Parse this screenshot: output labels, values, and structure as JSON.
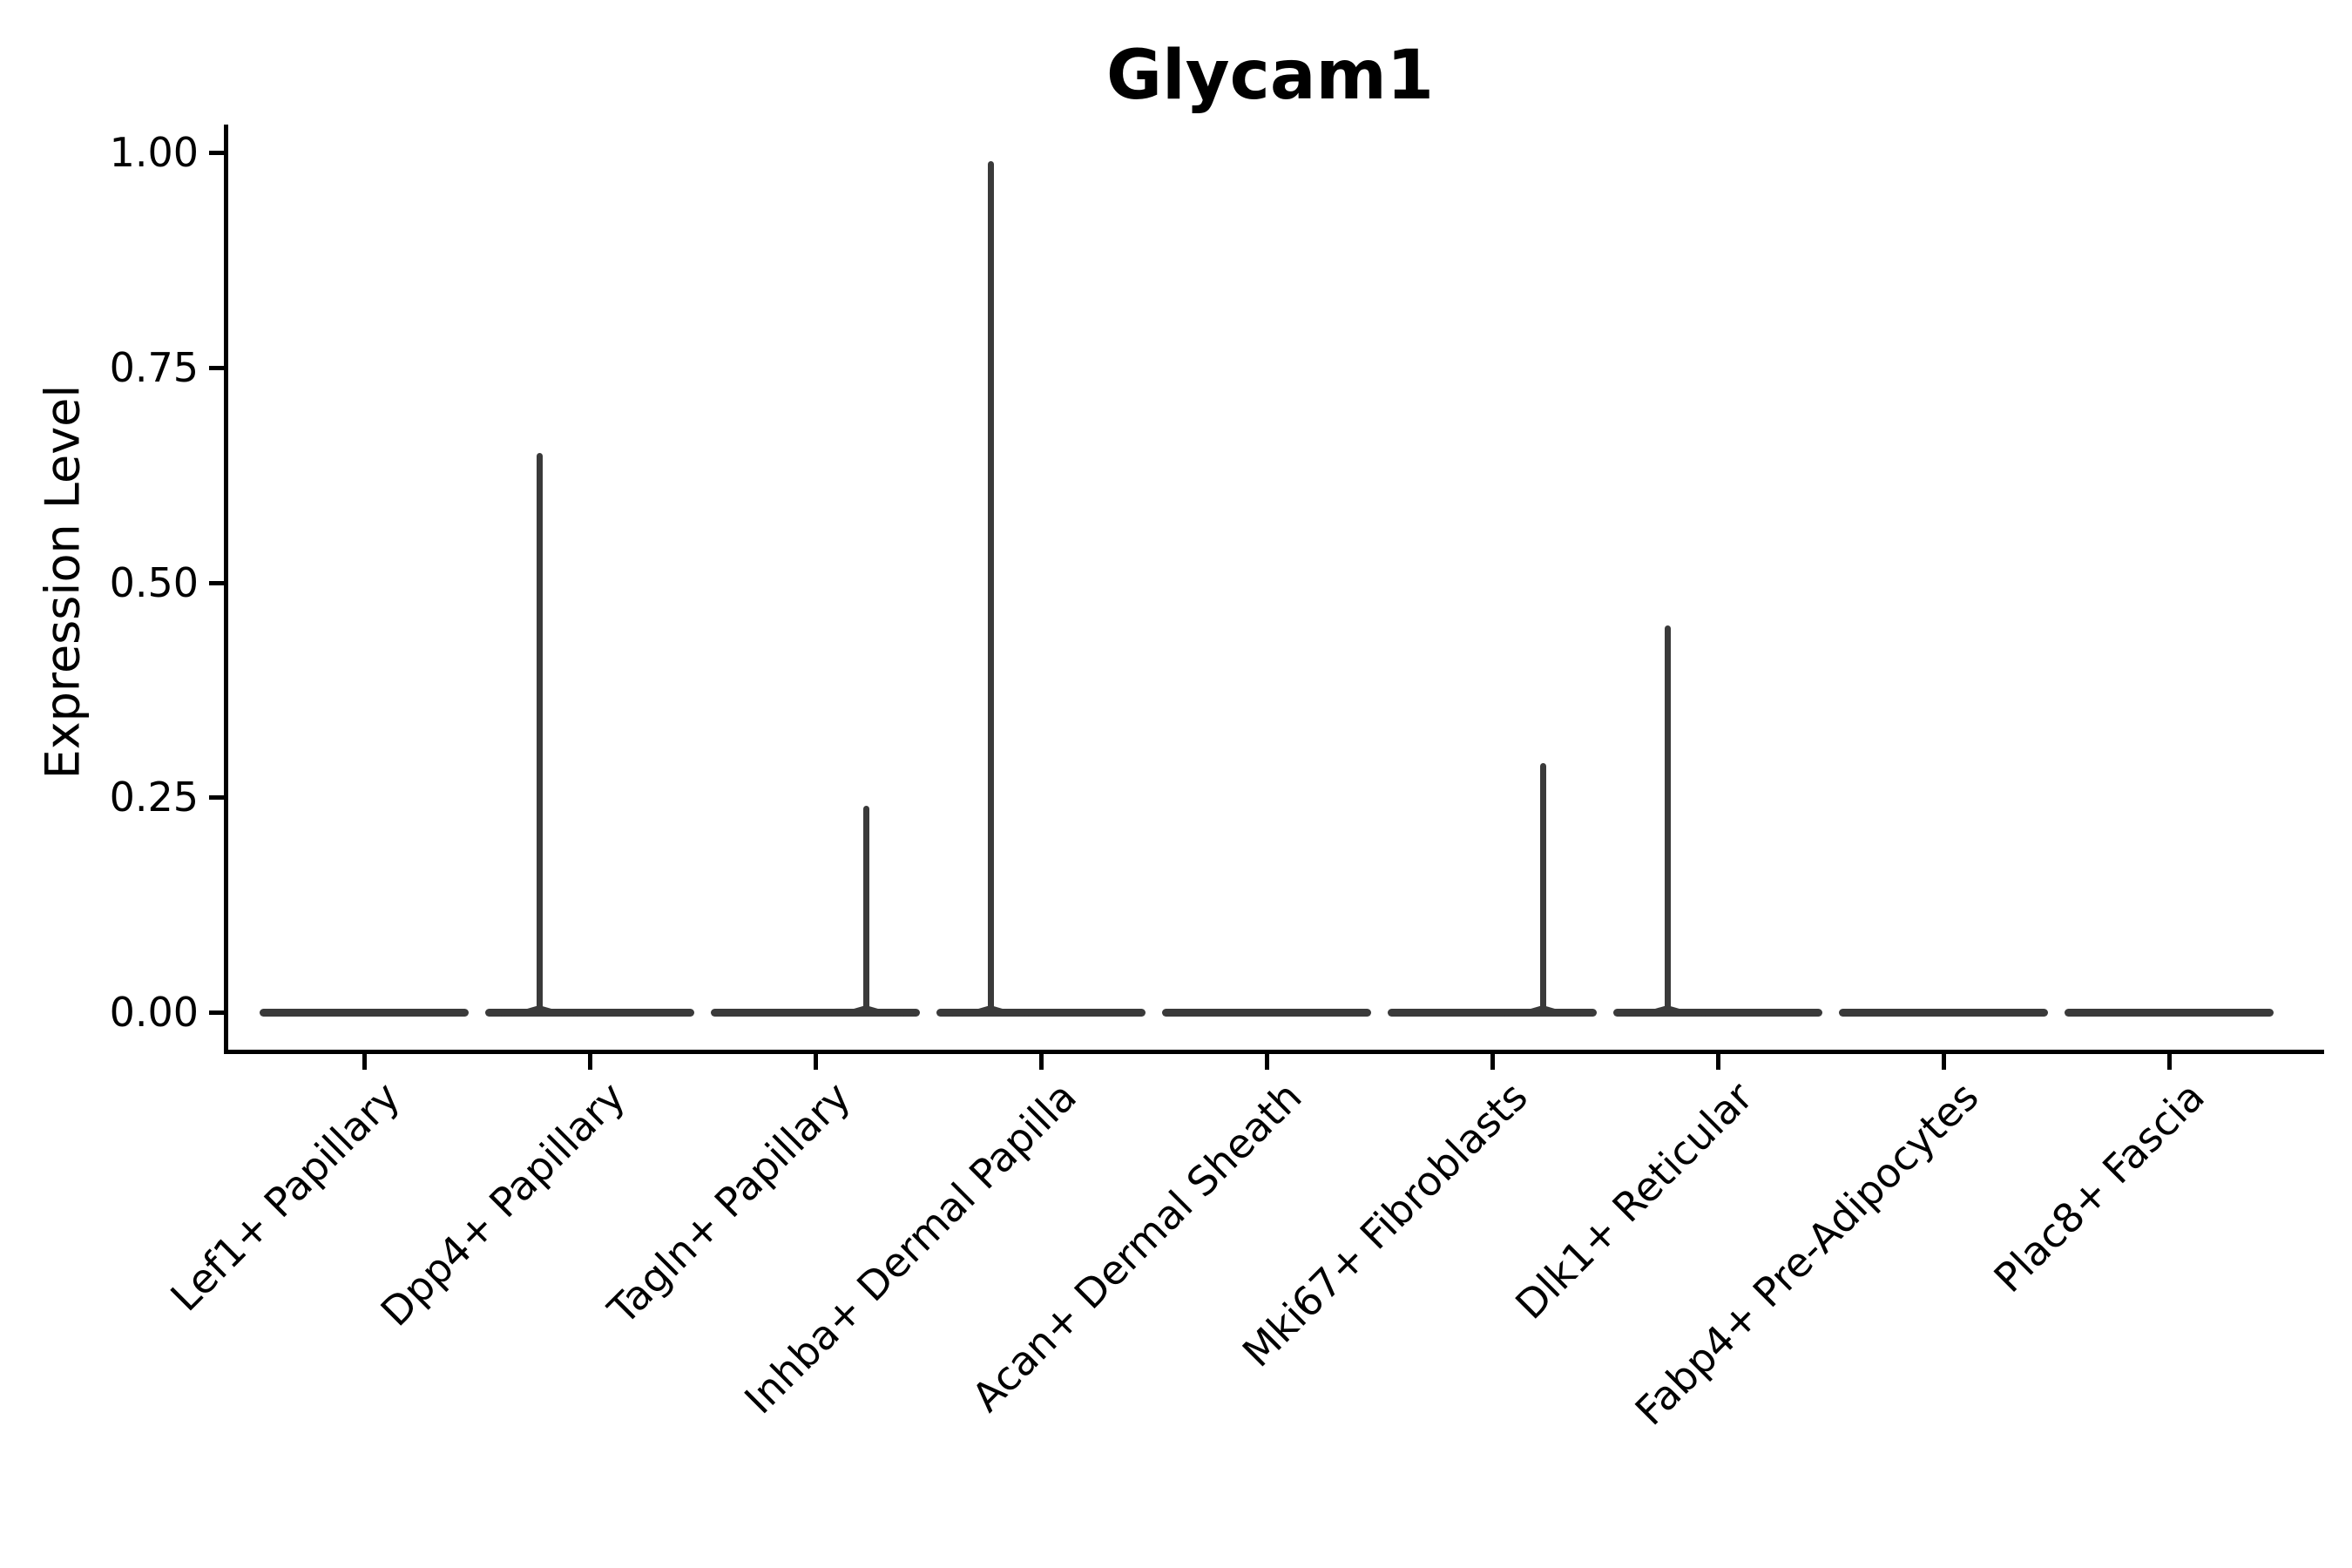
{
  "figure": {
    "title": "Glycam1",
    "ylabel": "Expression Level"
  },
  "chart_data": {
    "type": "violin",
    "title": "Glycam1",
    "xlabel": "",
    "ylabel": "Expression Level",
    "ylim": [
      0,
      1.0
    ],
    "ytick_values": [
      0,
      0.25,
      0.5,
      0.75,
      1.0
    ],
    "ytick_labels": [
      "0.00",
      "0.25",
      "0.50",
      "0.75",
      "1.00"
    ],
    "grid": false,
    "legend": "none",
    "description": "Violin plot of Glycam1 expression per fibroblast cluster; nearly all cells express 0 (flat violin body at 0) with a thin density spike up to the max expressed value in some clusters.",
    "categories": [
      "Lef1+ Papillary",
      "Dpp4+ Papillary",
      "Tagln+ Papillary",
      "Inhba+ Dermal Papilla",
      "Acan+ Dermal Sheath",
      "Mki67+ Fibroblasts",
      "Dlk1+ Reticular",
      "Fabp4+ Pre-Adipocytes",
      "Plac8+ Fascia"
    ],
    "violins": [
      {
        "category": "Lef1+ Papillary",
        "body_value": 0,
        "spike_max": 0,
        "spike_side": null
      },
      {
        "category": "Dpp4+ Papillary",
        "body_value": 0,
        "spike_max": 0.65,
        "spike_side": "left"
      },
      {
        "category": "Tagln+ Papillary",
        "body_value": 0,
        "spike_max": 0.24,
        "spike_side": "right"
      },
      {
        "category": "Inhba+ Dermal Papilla",
        "body_value": 0,
        "spike_max": 0.99,
        "spike_side": "left"
      },
      {
        "category": "Acan+ Dermal Sheath",
        "body_value": 0,
        "spike_max": 0,
        "spike_side": null
      },
      {
        "category": "Mki67+ Fibroblasts",
        "body_value": 0,
        "spike_max": 0.29,
        "spike_side": "right"
      },
      {
        "category": "Dlk1+ Reticular",
        "body_value": 0,
        "spike_max": 0.45,
        "spike_side": "left"
      },
      {
        "category": "Fabp4+ Pre-Adipocytes",
        "body_value": 0,
        "spike_max": 0,
        "spike_side": null
      },
      {
        "category": "Plac8+ Fascia",
        "body_value": 0,
        "spike_max": 0,
        "spike_side": null
      }
    ],
    "colors": {
      "violin": "#3a3a3a",
      "axis": "#000000",
      "background": "#ffffff",
      "title_text": "#000000"
    }
  }
}
